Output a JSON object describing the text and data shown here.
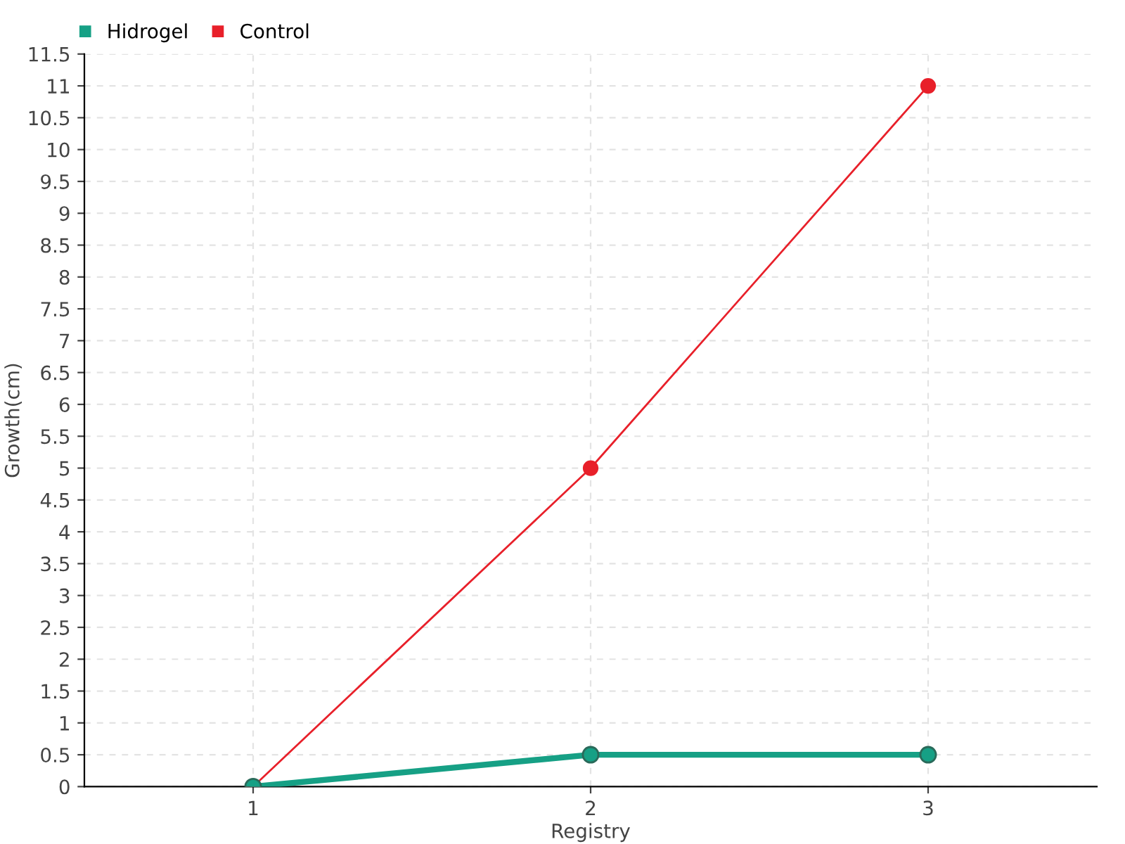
{
  "chart_data": {
    "type": "line",
    "xlabel": "Registry",
    "ylabel": "Growth(cm)",
    "x": [
      1,
      2,
      3
    ],
    "series": [
      {
        "name": "Hidrogel",
        "color": "#16a085",
        "values": [
          0,
          0.5,
          0.5
        ]
      },
      {
        "name": "Control",
        "color": "#e8202a",
        "values": [
          0,
          5,
          11
        ]
      }
    ],
    "xlim": [
      0.5,
      3.5
    ],
    "xticks": [
      1,
      2,
      3
    ],
    "ylim": [
      0,
      11.5
    ],
    "yticks": [
      0,
      0.5,
      1,
      1.5,
      2,
      2.5,
      3,
      3.5,
      4,
      4.5,
      5,
      5.5,
      6,
      6.5,
      7,
      7.5,
      8,
      8.5,
      9,
      9.5,
      10,
      10.5,
      11,
      11.5
    ],
    "grid": true,
    "legend": "top left",
    "marker": "circle",
    "line_style": "solid"
  }
}
